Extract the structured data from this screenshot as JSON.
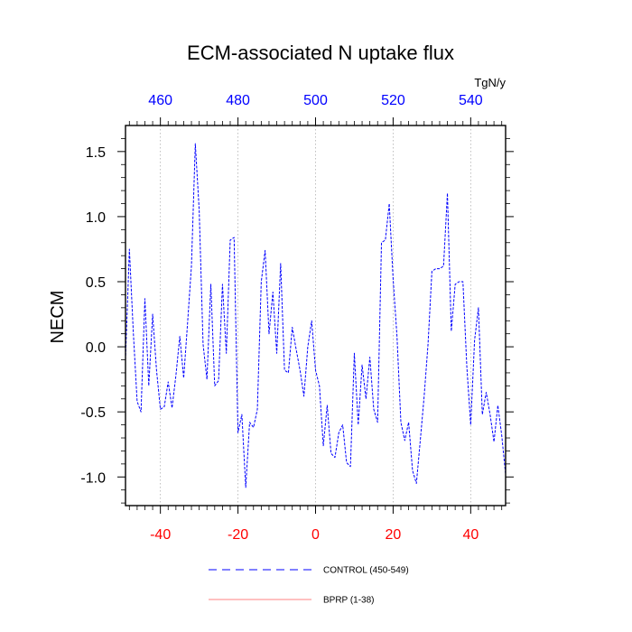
{
  "chart_data": {
    "type": "line",
    "title": "ECM-associated N uptake flux",
    "ylabel": "NECM",
    "xlabel": "",
    "top_axis_units": "TgN/y",
    "xlim": [
      -49,
      49
    ],
    "ylim": [
      -1.22,
      1.7
    ],
    "x_ticks": [
      -40,
      -20,
      0,
      20,
      40
    ],
    "x_tick_labels": [
      "-40",
      "-20",
      "0",
      "20",
      "40"
    ],
    "x_tick_color": "#ff0000",
    "top_ticks": [
      -40,
      -20,
      0,
      20,
      40
    ],
    "top_tick_labels": [
      "460",
      "480",
      "500",
      "520",
      "540"
    ],
    "top_tick_color": "#0000ff",
    "y_ticks": [
      -1.0,
      -0.5,
      0.0,
      0.5,
      1.0,
      1.5
    ],
    "y_tick_labels": [
      "-1.0",
      "-0.5",
      "0.0",
      "0.5",
      "1.0",
      "1.5"
    ],
    "grid": "vertical dotted at major x ticks",
    "series": [
      {
        "name": "CONTROL (450-549)",
        "color": "#0000ff",
        "style": "dashed",
        "x": [
          -49,
          -48,
          -47,
          -46,
          -45,
          -44,
          -43,
          -42,
          -41,
          -40,
          -39,
          -38,
          -37,
          -36,
          -35,
          -34,
          -33,
          -32,
          -31,
          -30,
          -29,
          -28,
          -27,
          -26,
          -25,
          -24,
          -23,
          -22,
          -21,
          -20,
          -19,
          -18,
          -17,
          -16,
          -15,
          -14,
          -13,
          -12,
          -11,
          -10,
          -9,
          -8,
          -7,
          -6,
          -5,
          -4,
          -3,
          -2,
          -1,
          0,
          1,
          2,
          3,
          4,
          5,
          6,
          7,
          8,
          9,
          10,
          11,
          12,
          13,
          14,
          15,
          16,
          17,
          18,
          19,
          20,
          21,
          22,
          23,
          24,
          25,
          26,
          27,
          28,
          29,
          30,
          31,
          32,
          33,
          34,
          35,
          36,
          37,
          38,
          39,
          40,
          41,
          42,
          43,
          44,
          45,
          46,
          47,
          48,
          49
        ],
        "values": [
          -0.1,
          0.75,
          0.12,
          -0.42,
          -0.5,
          0.37,
          -0.3,
          0.25,
          -0.18,
          -0.48,
          -0.46,
          -0.27,
          -0.47,
          -0.22,
          0.08,
          -0.24,
          0.18,
          0.62,
          1.56,
          1.05,
          0.02,
          -0.25,
          0.48,
          -0.3,
          -0.26,
          0.48,
          -0.05,
          0.82,
          0.84,
          -0.66,
          -0.52,
          -1.08,
          -0.58,
          -0.62,
          -0.48,
          0.5,
          0.74,
          0.1,
          0.42,
          -0.05,
          0.64,
          -0.18,
          -0.2,
          0.15,
          -0.02,
          -0.18,
          -0.38,
          0.0,
          0.2,
          -0.18,
          -0.3,
          -0.76,
          -0.45,
          -0.82,
          -0.85,
          -0.66,
          -0.6,
          -0.89,
          -0.92,
          -0.05,
          -0.6,
          -0.14,
          -0.4,
          -0.08,
          -0.48,
          -0.58,
          0.8,
          0.82,
          1.1,
          0.52,
          0.08,
          -0.58,
          -0.72,
          -0.58,
          -0.95,
          -1.05,
          -0.72,
          -0.38,
          0.02,
          0.58,
          0.6,
          0.6,
          0.62,
          1.18,
          0.12,
          0.48,
          0.5,
          0.5,
          -0.15,
          -0.6,
          0.05,
          0.3,
          -0.52,
          -0.35,
          -0.52,
          -0.73,
          -0.45,
          -0.68,
          -0.98
        ]
      },
      {
        "name": "BPRP (1-38)",
        "color": "#ff8080",
        "style": "solid",
        "x": [],
        "values": []
      }
    ]
  }
}
